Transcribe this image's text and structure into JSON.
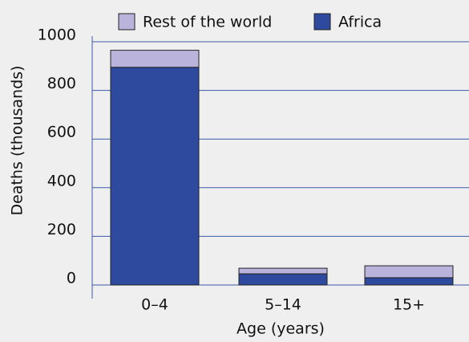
{
  "chart_data": {
    "type": "stacked_bar",
    "x_label": "Age (years)",
    "y_label": "Deaths (thousands)",
    "categories": [
      "0–4",
      "5–14",
      "15+"
    ],
    "series": [
      {
        "name": "Rest of the world",
        "color": "#bab4dc",
        "values": [
          70,
          23,
          49
        ]
      },
      {
        "name": "Africa",
        "color": "#2e4a9e",
        "values": [
          895,
          46,
          30
        ]
      }
    ],
    "ylim": [
      0,
      1000
    ],
    "yticks": [
      0,
      200,
      400,
      600,
      800,
      1000
    ],
    "grid": true
  }
}
